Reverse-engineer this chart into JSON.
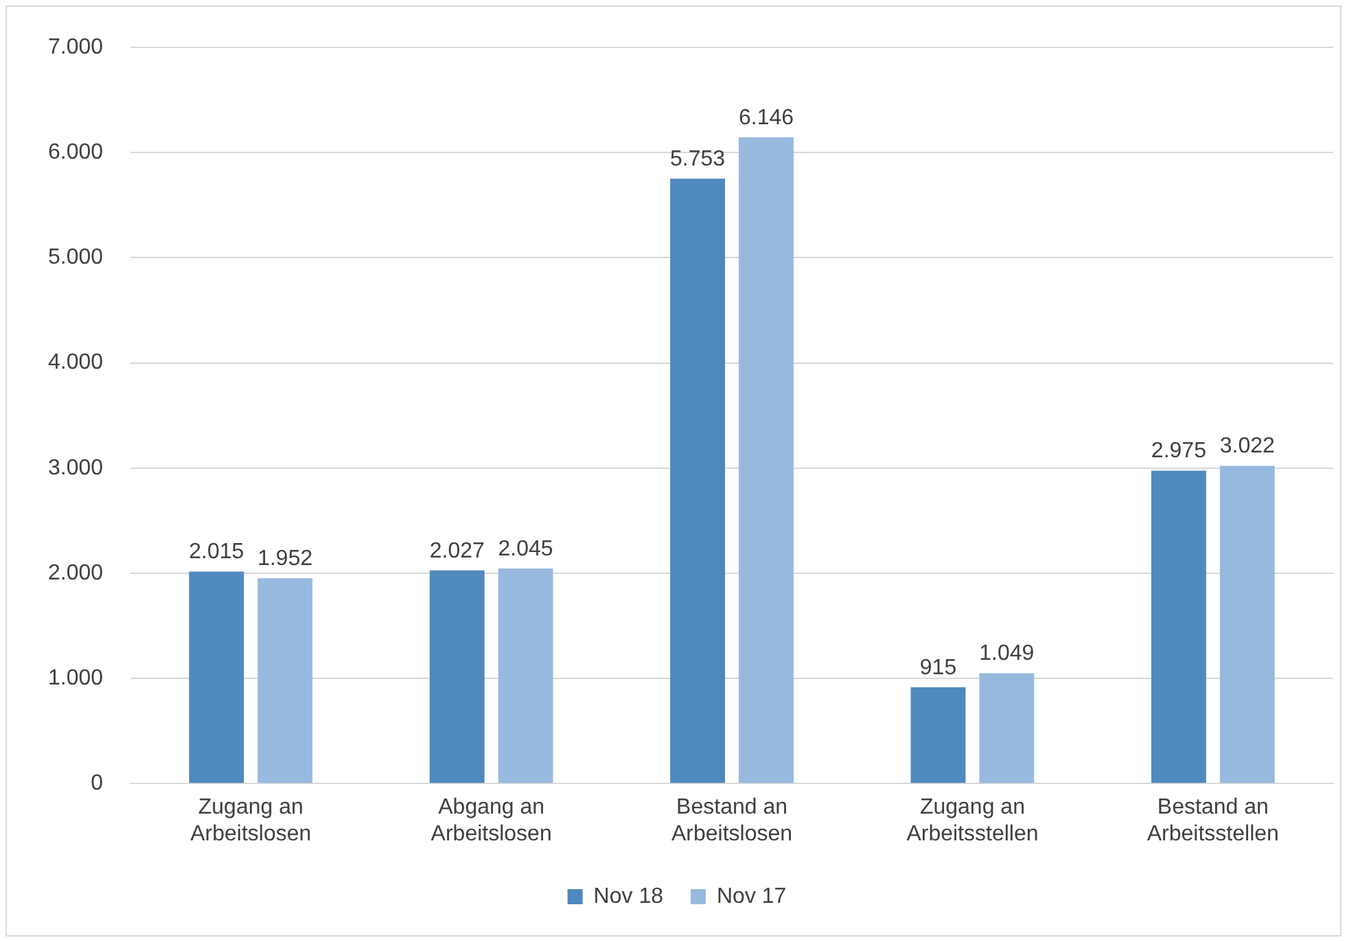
{
  "chart_data": {
    "type": "bar",
    "categories": [
      "Zugang an Arbeitslosen",
      "Abgang an Arbeitslosen",
      "Bestand an Arbeitslosen",
      "Zugang an Arbeitsstellen",
      "Bestand an Arbeitsstellen"
    ],
    "series": [
      {
        "name": "Nov 18",
        "color": "#4f89bd",
        "values": [
          2015,
          2027,
          5753,
          915,
          2975
        ],
        "value_labels": [
          "2.015",
          "2.027",
          "5.753",
          "915",
          "2.975"
        ]
      },
      {
        "name": "Nov 17",
        "color": "#98b9df",
        "values": [
          1952,
          2045,
          6146,
          1049,
          3022
        ],
        "value_labels": [
          "1.952",
          "2.045",
          "6.146",
          "1.049",
          "3.022"
        ]
      }
    ],
    "ylim": [
      0,
      7000
    ],
    "yticks": [
      {
        "value": 0,
        "label": "0"
      },
      {
        "value": 1000,
        "label": "1.000"
      },
      {
        "value": 2000,
        "label": "2.000"
      },
      {
        "value": 3000,
        "label": "3.000"
      },
      {
        "value": 4000,
        "label": "4.000"
      },
      {
        "value": 5000,
        "label": "5.000"
      },
      {
        "value": 6000,
        "label": "6.000"
      },
      {
        "value": 7000,
        "label": "7.000"
      }
    ],
    "grid": "y",
    "legend": "bottom"
  }
}
